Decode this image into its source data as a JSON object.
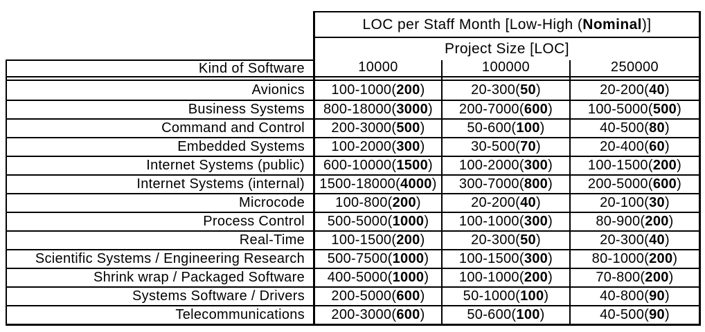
{
  "chart_data": {
    "type": "table",
    "title": "LOC per Staff Month [Low-High (Nominal)]",
    "title_prefix": "LOC per Staff Month [Low-High (",
    "title_bold": "Nominal",
    "title_suffix": ")]",
    "column_group_label": "Project Size [LOC]",
    "row_header": "Kind of Software",
    "columns": [
      "10000",
      "100000",
      "250000"
    ],
    "cell_format": "low-high(nominal)",
    "rows": [
      {
        "label": "Avionics",
        "cells": [
          [
            100,
            1000,
            200
          ],
          [
            20,
            300,
            50
          ],
          [
            20,
            200,
            40
          ]
        ]
      },
      {
        "label": "Business Systems",
        "cells": [
          [
            800,
            18000,
            3000
          ],
          [
            200,
            7000,
            600
          ],
          [
            100,
            5000,
            500
          ]
        ]
      },
      {
        "label": "Command and Control",
        "cells": [
          [
            200,
            3000,
            500
          ],
          [
            50,
            600,
            100
          ],
          [
            40,
            500,
            80
          ]
        ]
      },
      {
        "label": "Embedded Systems",
        "cells": [
          [
            100,
            2000,
            300
          ],
          [
            30,
            500,
            70
          ],
          [
            20,
            400,
            60
          ]
        ]
      },
      {
        "label": "Internet Systems (public)",
        "cells": [
          [
            600,
            10000,
            1500
          ],
          [
            100,
            2000,
            300
          ],
          [
            100,
            1500,
            200
          ]
        ]
      },
      {
        "label": "Internet Systems (internal)",
        "cells": [
          [
            1500,
            18000,
            4000
          ],
          [
            300,
            7000,
            800
          ],
          [
            200,
            5000,
            600
          ]
        ]
      },
      {
        "label": "Microcode",
        "cells": [
          [
            100,
            800,
            200
          ],
          [
            20,
            200,
            40
          ],
          [
            20,
            100,
            30
          ]
        ]
      },
      {
        "label": "Process Control",
        "cells": [
          [
            500,
            5000,
            1000
          ],
          [
            100,
            1000,
            300
          ],
          [
            80,
            900,
            200
          ]
        ]
      },
      {
        "label": "Real-Time",
        "cells": [
          [
            100,
            1500,
            200
          ],
          [
            20,
            300,
            50
          ],
          [
            20,
            300,
            40
          ]
        ]
      },
      {
        "label": "Scientific Systems / Engineering Research",
        "cells": [
          [
            500,
            7500,
            1000
          ],
          [
            100,
            1500,
            300
          ],
          [
            80,
            1000,
            200
          ]
        ]
      },
      {
        "label": "Shrink wrap / Packaged Software",
        "cells": [
          [
            400,
            5000,
            1000
          ],
          [
            100,
            1000,
            200
          ],
          [
            70,
            800,
            200
          ]
        ]
      },
      {
        "label": "Systems Software / Drivers",
        "cells": [
          [
            200,
            5000,
            600
          ],
          [
            50,
            1000,
            100
          ],
          [
            40,
            800,
            90
          ]
        ]
      },
      {
        "label": "Telecommunications",
        "cells": [
          [
            200,
            3000,
            600
          ],
          [
            50,
            600,
            100
          ],
          [
            40,
            500,
            90
          ]
        ]
      }
    ]
  },
  "colors": {
    "border": "#000000",
    "text": "#000000",
    "background": "#ffffff"
  }
}
